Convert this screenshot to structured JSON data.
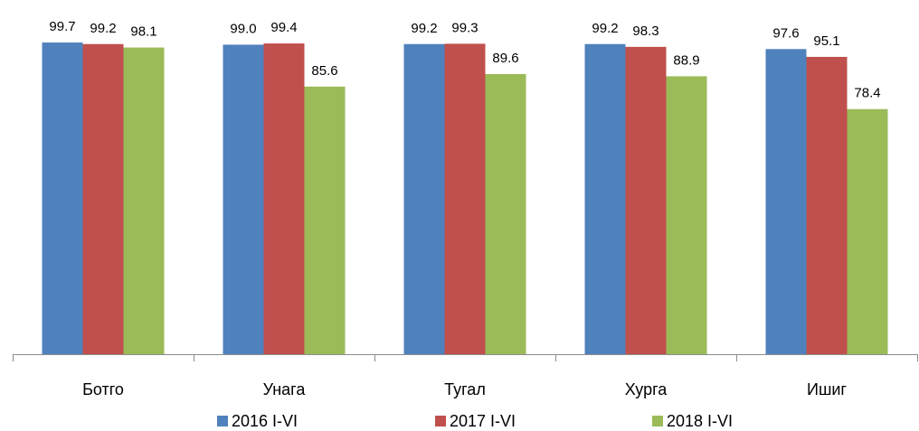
{
  "chart_data": {
    "type": "bar",
    "categories": [
      "Ботго",
      "Унага",
      "Тугал",
      "Хурга",
      "Ишиг"
    ],
    "series": [
      {
        "name": "2016 I-VI",
        "color": "#4F81BD",
        "values": [
          99.7,
          99.0,
          99.2,
          99.2,
          97.6
        ]
      },
      {
        "name": "2017 I-VI",
        "color": "#C0504D",
        "values": [
          99.2,
          99.4,
          99.3,
          98.3,
          95.1
        ]
      },
      {
        "name": "2018 I-VI",
        "color": "#9BBB59",
        "values": [
          98.1,
          85.6,
          89.6,
          88.9,
          78.4
        ]
      }
    ],
    "data_labels": true,
    "value_axis_visible": false,
    "grid": false,
    "legend_position": "bottom"
  }
}
